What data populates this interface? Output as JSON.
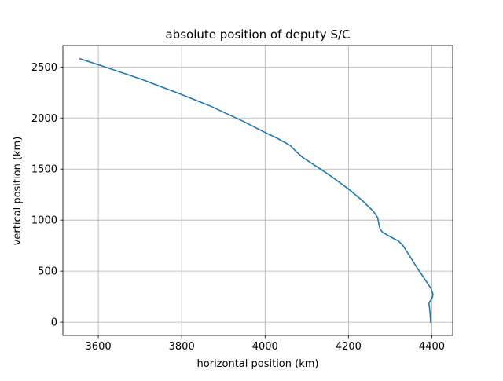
{
  "chart_data": {
    "type": "line",
    "title": "absolute position of deputy S/C",
    "xlabel": "horizontal position (km)",
    "ylabel": "vertical position (km)",
    "xlim": [
      3515,
      4450
    ],
    "ylim": [
      -130,
      2710
    ],
    "xticks": [
      3600,
      3800,
      4000,
      4200,
      4400
    ],
    "yticks": [
      0,
      500,
      1000,
      1500,
      2000,
      2500
    ],
    "grid": true,
    "line_color": "#1f77b4",
    "series": [
      {
        "x": [
          3556,
          3600,
          3700,
          3800,
          3870,
          3950,
          4000,
          4030,
          4060,
          4075,
          4090,
          4120,
          4160,
          4200,
          4235,
          4260,
          4270,
          4273,
          4276,
          4282,
          4300,
          4320,
          4330,
          4345,
          4365,
          4385,
          4398,
          4403,
          4400,
          4393,
          4394,
          4396,
          4397
        ],
        "y": [
          2580,
          2522,
          2385,
          2230,
          2115,
          1963,
          1858,
          1800,
          1732,
          1670,
          1615,
          1535,
          1425,
          1305,
          1185,
          1085,
          1025,
          960,
          910,
          880,
          838,
          795,
          755,
          660,
          530,
          410,
          330,
          270,
          230,
          190,
          150,
          80,
          0
        ]
      }
    ]
  }
}
